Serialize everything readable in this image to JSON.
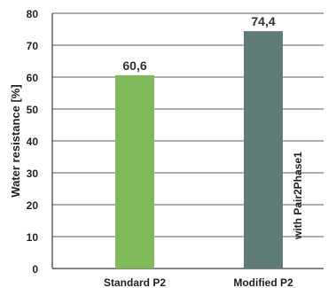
{
  "chart_data": {
    "type": "bar",
    "title": "",
    "xlabel": "",
    "ylabel": "Water resistance [%]",
    "categories": [
      "Standard P2",
      "Modified P2"
    ],
    "values": [
      60.6,
      74.4
    ],
    "value_labels": [
      "60,6",
      "74,4"
    ],
    "bar_colors": [
      "#7fb95a",
      "#5f7b78"
    ],
    "bar_annotations": [
      "",
      "with Pair2Phase1"
    ],
    "ylim": [
      0,
      80
    ],
    "yticks": [
      0,
      10,
      20,
      30,
      40,
      50,
      60,
      70,
      80
    ],
    "ytick_labels": [
      "0",
      "10",
      "20",
      "30",
      "40",
      "50",
      "60",
      "70",
      "80"
    ],
    "grid": true,
    "legend": "none"
  }
}
